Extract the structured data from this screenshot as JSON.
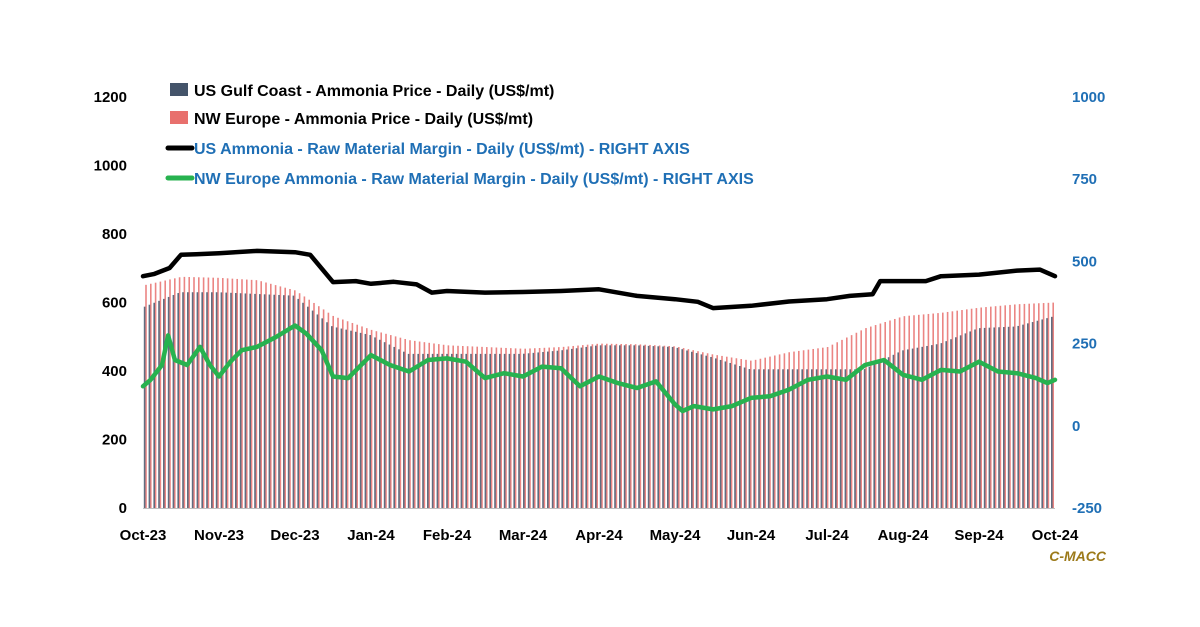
{
  "colors": {
    "us_bar": "#44546A",
    "eu_bar": "#E8706D",
    "us_line": "#000000",
    "eu_line": "#27B24F",
    "right_axis": "#1F6FB5",
    "left_axis": "#000000",
    "source": "#9C7A1A"
  },
  "chart_data": {
    "type": "bar+line",
    "title": "",
    "left_axis": {
      "ylim": [
        0,
        1200
      ],
      "ticks": [
        "0",
        "200",
        "400",
        "600",
        "800",
        "1000",
        "1200"
      ]
    },
    "right_axis": {
      "ylim": [
        -250,
        1000
      ],
      "ticks": [
        "-250",
        "0",
        "250",
        "500",
        "750",
        "1000"
      ]
    },
    "x_ticks": [
      "Oct-23",
      "Nov-23",
      "Dec-23",
      "Jan-24",
      "Feb-24",
      "Mar-24",
      "Apr-24",
      "May-24",
      "Jun-24",
      "Jul-24",
      "Aug-24",
      "Sep-24",
      "Oct-24"
    ],
    "legend": [
      {
        "label": "US Gulf Coast - Ammonia Price - Daily (US$/mt)",
        "kind": "bar",
        "color_key": "us_bar"
      },
      {
        "label": "NW Europe - Ammonia Price - Daily (US$/mt)",
        "kind": "bar",
        "color_key": "eu_bar"
      },
      {
        "label": "US Ammonia - Raw Material Margin - Daily (US$/mt) - RIGHT AXIS",
        "kind": "line",
        "color_key": "us_line"
      },
      {
        "label": "NW Europe Ammonia - Raw Material Margin - Daily (US$/mt) - RIGHT AXIS",
        "kind": "line",
        "color_key": "eu_line"
      }
    ],
    "series": [
      {
        "name": "US Gulf Coast - Ammonia Price - Daily (US$/mt)",
        "axis": "left",
        "type": "bar",
        "x": [
          0.0,
          0.5,
          1.0,
          1.5,
          2.0,
          2.5,
          3.0,
          3.5,
          4.0,
          4.5,
          5.0,
          5.5,
          6.0,
          6.5,
          7.0,
          7.5,
          8.0,
          8.5,
          9.0,
          9.5,
          10.0,
          10.5,
          11.0,
          11.5,
          12.0
        ],
        "values": [
          585,
          630,
          630,
          625,
          620,
          530,
          505,
          450,
          450,
          450,
          450,
          460,
          475,
          475,
          470,
          440,
          405,
          405,
          405,
          405,
          460,
          480,
          525,
          530,
          560
        ]
      },
      {
        "name": "NW Europe - Ammonia Price - Daily (US$/mt)",
        "axis": "left",
        "type": "bar",
        "x": [
          0.0,
          0.5,
          1.0,
          1.5,
          2.0,
          2.5,
          3.0,
          3.5,
          4.0,
          4.5,
          5.0,
          5.5,
          6.0,
          6.5,
          7.0,
          7.5,
          8.0,
          8.5,
          9.0,
          9.5,
          10.0,
          10.5,
          11.0,
          11.5,
          12.0
        ],
        "values": [
          650,
          675,
          672,
          665,
          635,
          560,
          520,
          490,
          475,
          470,
          465,
          470,
          480,
          478,
          472,
          448,
          430,
          455,
          470,
          525,
          560,
          570,
          585,
          595,
          600
        ]
      },
      {
        "name": "US Ammonia - Raw Material Margin - Daily (US$/mt) - RIGHT AXIS",
        "axis": "right",
        "type": "line",
        "x": [
          0.0,
          0.15,
          0.35,
          0.5,
          0.7,
          1.0,
          1.5,
          2.0,
          2.2,
          2.5,
          2.8,
          3.0,
          3.3,
          3.6,
          3.8,
          4.0,
          4.5,
          5.0,
          5.5,
          6.0,
          6.5,
          7.0,
          7.3,
          7.5,
          8.0,
          8.5,
          9.0,
          9.3,
          9.6,
          9.7,
          10.0,
          10.3,
          10.5,
          11.0,
          11.5,
          11.8,
          12.0
        ],
        "values": [
          455,
          462,
          480,
          520,
          522,
          525,
          532,
          528,
          520,
          437,
          440,
          432,
          438,
          430,
          405,
          410,
          405,
          407,
          410,
          415,
          395,
          385,
          377,
          358,
          365,
          378,
          385,
          395,
          400,
          440,
          440,
          440,
          455,
          460,
          472,
          475,
          455
        ]
      },
      {
        "name": "NW Europe Ammonia - Raw Material Margin - Daily (US$/mt) - RIGHT AXIS",
        "axis": "right",
        "type": "line",
        "x": [
          0.0,
          0.1,
          0.25,
          0.33,
          0.42,
          0.58,
          0.75,
          0.88,
          1.0,
          1.15,
          1.3,
          1.5,
          1.75,
          2.0,
          2.15,
          2.35,
          2.5,
          2.7,
          3.0,
          3.25,
          3.5,
          3.75,
          4.0,
          4.25,
          4.5,
          4.75,
          5.0,
          5.25,
          5.5,
          5.75,
          6.0,
          6.25,
          6.5,
          6.75,
          7.0,
          7.1,
          7.25,
          7.5,
          7.75,
          8.0,
          8.25,
          8.5,
          8.75,
          9.0,
          9.25,
          9.5,
          9.75,
          10.0,
          10.25,
          10.5,
          10.75,
          11.0,
          11.25,
          11.5,
          11.75,
          11.9,
          12.0
        ],
        "values": [
          120,
          140,
          185,
          275,
          200,
          185,
          240,
          185,
          150,
          195,
          230,
          240,
          270,
          305,
          280,
          230,
          150,
          145,
          215,
          185,
          165,
          200,
          205,
          195,
          145,
          160,
          150,
          180,
          175,
          120,
          150,
          130,
          115,
          135,
          65,
          45,
          60,
          50,
          60,
          85,
          90,
          110,
          140,
          150,
          140,
          185,
          200,
          155,
          140,
          170,
          165,
          195,
          165,
          160,
          145,
          130,
          140
        ]
      }
    ],
    "source_label": "C-MACC"
  }
}
